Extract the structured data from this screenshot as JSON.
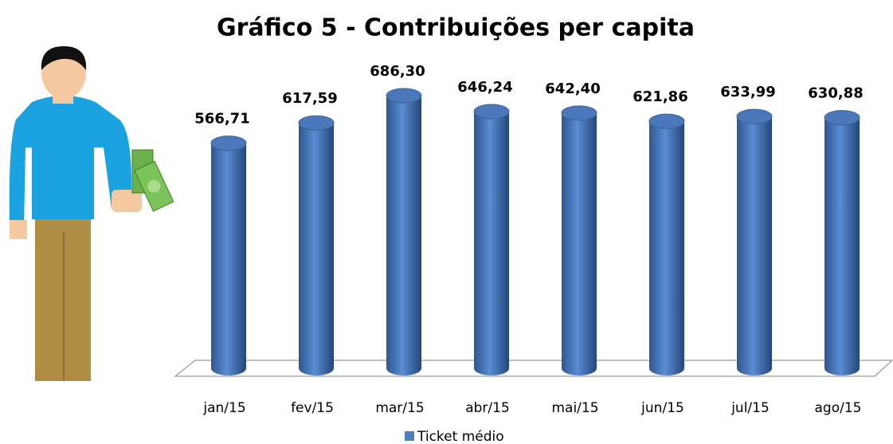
{
  "chart_data": {
    "type": "bar",
    "title": "Gráfico 5 - Contribuições per capita",
    "categories": [
      "jan/15",
      "fev/15",
      "mar/15",
      "abr/15",
      "mai/15",
      "jun/15",
      "jul/15",
      "ago/15"
    ],
    "series": [
      {
        "name": "Ticket médio",
        "color": "#4f81bd",
        "values": [
          566.71,
          617.59,
          686.3,
          646.24,
          642.4,
          621.86,
          633.99,
          630.88
        ],
        "value_labels": [
          "566,71",
          "617,59",
          "686,30",
          "646,24",
          "642,40",
          "621,86",
          "633,99",
          "630,88"
        ]
      }
    ]
  }
}
